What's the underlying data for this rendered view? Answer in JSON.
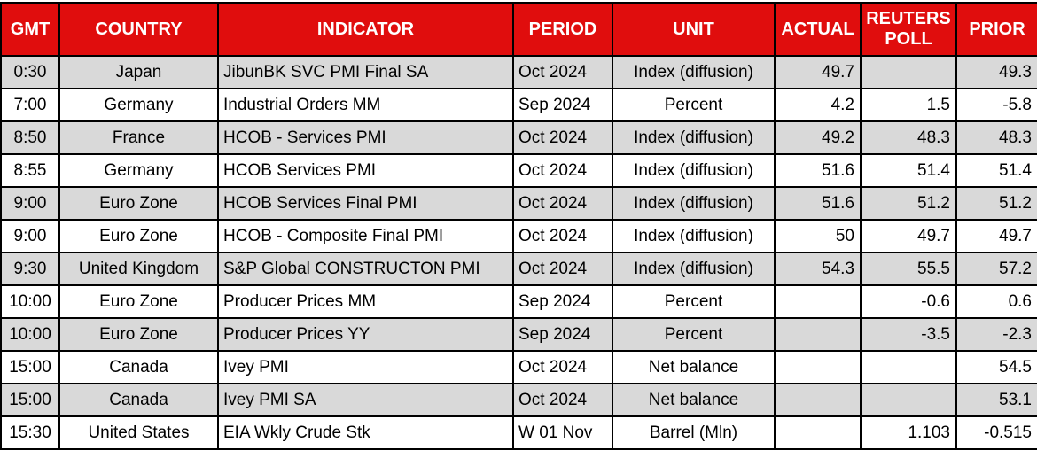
{
  "title": "Economic calendar table",
  "colors": {
    "header_bg": "#e00d0d",
    "header_text": "#ffffff",
    "row_bg": "#ffffff",
    "row_alt_bg": "#d9d9d9",
    "border": "#000000",
    "text": "#000000"
  },
  "chart_data": {
    "type": "table",
    "legend_position": "none",
    "grid": true,
    "columns": [
      {
        "label": "GMT"
      },
      {
        "label": "COUNTRY"
      },
      {
        "label": "INDICATOR"
      },
      {
        "label": "PERIOD"
      },
      {
        "label": "UNIT"
      },
      {
        "label": "ACTUAL"
      },
      {
        "label": "REUTERS POLL"
      },
      {
        "label": "PRIOR"
      }
    ],
    "rows": [
      [
        "0:30",
        "Japan",
        "JibunBK SVC PMI Final SA",
        "Oct 2024",
        "Index (diffusion)",
        "49.7",
        "",
        "49.3"
      ],
      [
        "7:00",
        "Germany",
        "Industrial Orders MM",
        "Sep 2024",
        "Percent",
        "4.2",
        "1.5",
        "-5.8"
      ],
      [
        "8:50",
        "France",
        "HCOB - Services PMI",
        "Oct 2024",
        "Index (diffusion)",
        "49.2",
        "48.3",
        "48.3"
      ],
      [
        "8:55",
        "Germany",
        "HCOB Services PMI",
        "Oct 2024",
        "Index (diffusion)",
        "51.6",
        "51.4",
        "51.4"
      ],
      [
        "9:00",
        "Euro Zone",
        "HCOB Services Final PMI",
        "Oct 2024",
        "Index (diffusion)",
        "51.6",
        "51.2",
        "51.2"
      ],
      [
        "9:00",
        "Euro Zone",
        "HCOB - Composite Final PMI",
        "Oct 2024",
        "Index (diffusion)",
        "50",
        "49.7",
        "49.7"
      ],
      [
        "9:30",
        "United Kingdom",
        "S&P Global CONSTRUCTON PMI",
        "Oct 2024",
        "Index (diffusion)",
        "54.3",
        "55.5",
        "57.2"
      ],
      [
        "10:00",
        "Euro Zone",
        "Producer Prices MM",
        "Sep 2024",
        "Percent",
        "",
        "-0.6",
        "0.6"
      ],
      [
        "10:00",
        "Euro Zone",
        "Producer Prices YY",
        "Sep 2024",
        "Percent",
        "",
        "-3.5",
        "-2.3"
      ],
      [
        "15:00",
        "Canada",
        "Ivey PMI",
        "Oct 2024",
        "Net balance",
        "",
        "",
        "54.5"
      ],
      [
        "15:00",
        "Canada",
        "Ivey PMI SA",
        "Oct 2024",
        "Net balance",
        "",
        "",
        "53.1"
      ],
      [
        "15:30",
        "United States",
        "EIA Wkly Crude Stk",
        "W 01 Nov",
        "Barrel (Mln)",
        "",
        "1.103",
        "-0.515"
      ]
    ]
  }
}
